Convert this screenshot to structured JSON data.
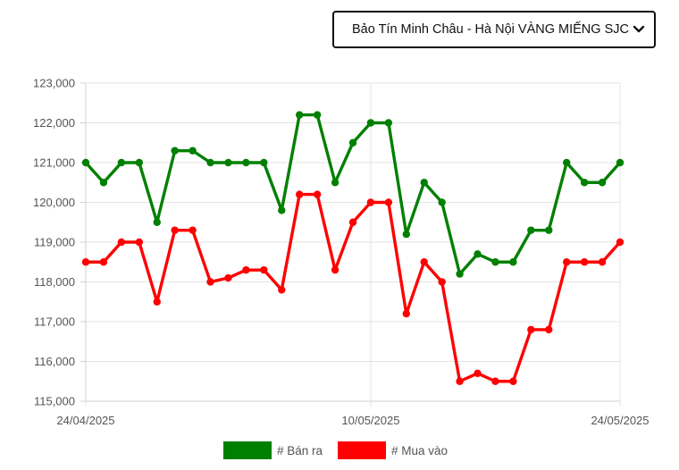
{
  "selector": {
    "label": "Bảo Tín Minh Châu - Hà Nội VÀNG MIẾNG SJC"
  },
  "chart_data": {
    "type": "line",
    "x": [
      "24/04/2025",
      "25/04/2025",
      "26/04/2025",
      "27/04/2025",
      "28/04/2025",
      "29/04/2025",
      "30/04/2025",
      "01/05/2025",
      "02/05/2025",
      "03/05/2025",
      "04/05/2025",
      "05/05/2025",
      "06/05/2025",
      "07/05/2025",
      "08/05/2025",
      "09/05/2025",
      "10/05/2025",
      "11/05/2025",
      "12/05/2025",
      "13/05/2025",
      "14/05/2025",
      "15/05/2025",
      "16/05/2025",
      "17/05/2025",
      "18/05/2025",
      "19/05/2025",
      "20/05/2025",
      "21/05/2025",
      "22/05/2025",
      "23/05/2025",
      "24/05/2025"
    ],
    "x_tick_labels": [
      "24/04/2025",
      "10/05/2025",
      "24/05/2025"
    ],
    "x_tick_indices": [
      0,
      16,
      30
    ],
    "yticks": [
      115000,
      116000,
      117000,
      118000,
      119000,
      120000,
      121000,
      122000,
      123000
    ],
    "ytick_labels": [
      "115,000",
      "116,000",
      "117,000",
      "118,000",
      "119,000",
      "120,000",
      "121,000",
      "122,000",
      "123,000"
    ],
    "ylim": [
      115000,
      123000
    ],
    "grid": true,
    "legend_position": "bottom",
    "series": [
      {
        "name": "# Bán ra",
        "color": "#008000",
        "values": [
          121000,
          120500,
          121000,
          121000,
          119500,
          121300,
          121300,
          121000,
          121000,
          121000,
          121000,
          119800,
          122200,
          122200,
          120500,
          121500,
          122000,
          122000,
          119200,
          120500,
          120000,
          118200,
          118700,
          118500,
          118500,
          119300,
          119300,
          121000,
          120500,
          120500,
          121000
        ]
      },
      {
        "name": "# Mua vào",
        "color": "#ff0000",
        "values": [
          118500,
          118500,
          119000,
          119000,
          117500,
          119300,
          119300,
          118000,
          118100,
          118300,
          118300,
          117800,
          120200,
          120200,
          118300,
          119500,
          120000,
          120000,
          117200,
          118500,
          118000,
          115500,
          115700,
          115500,
          115500,
          116800,
          116800,
          118500,
          118500,
          118500,
          119000
        ]
      }
    ]
  }
}
